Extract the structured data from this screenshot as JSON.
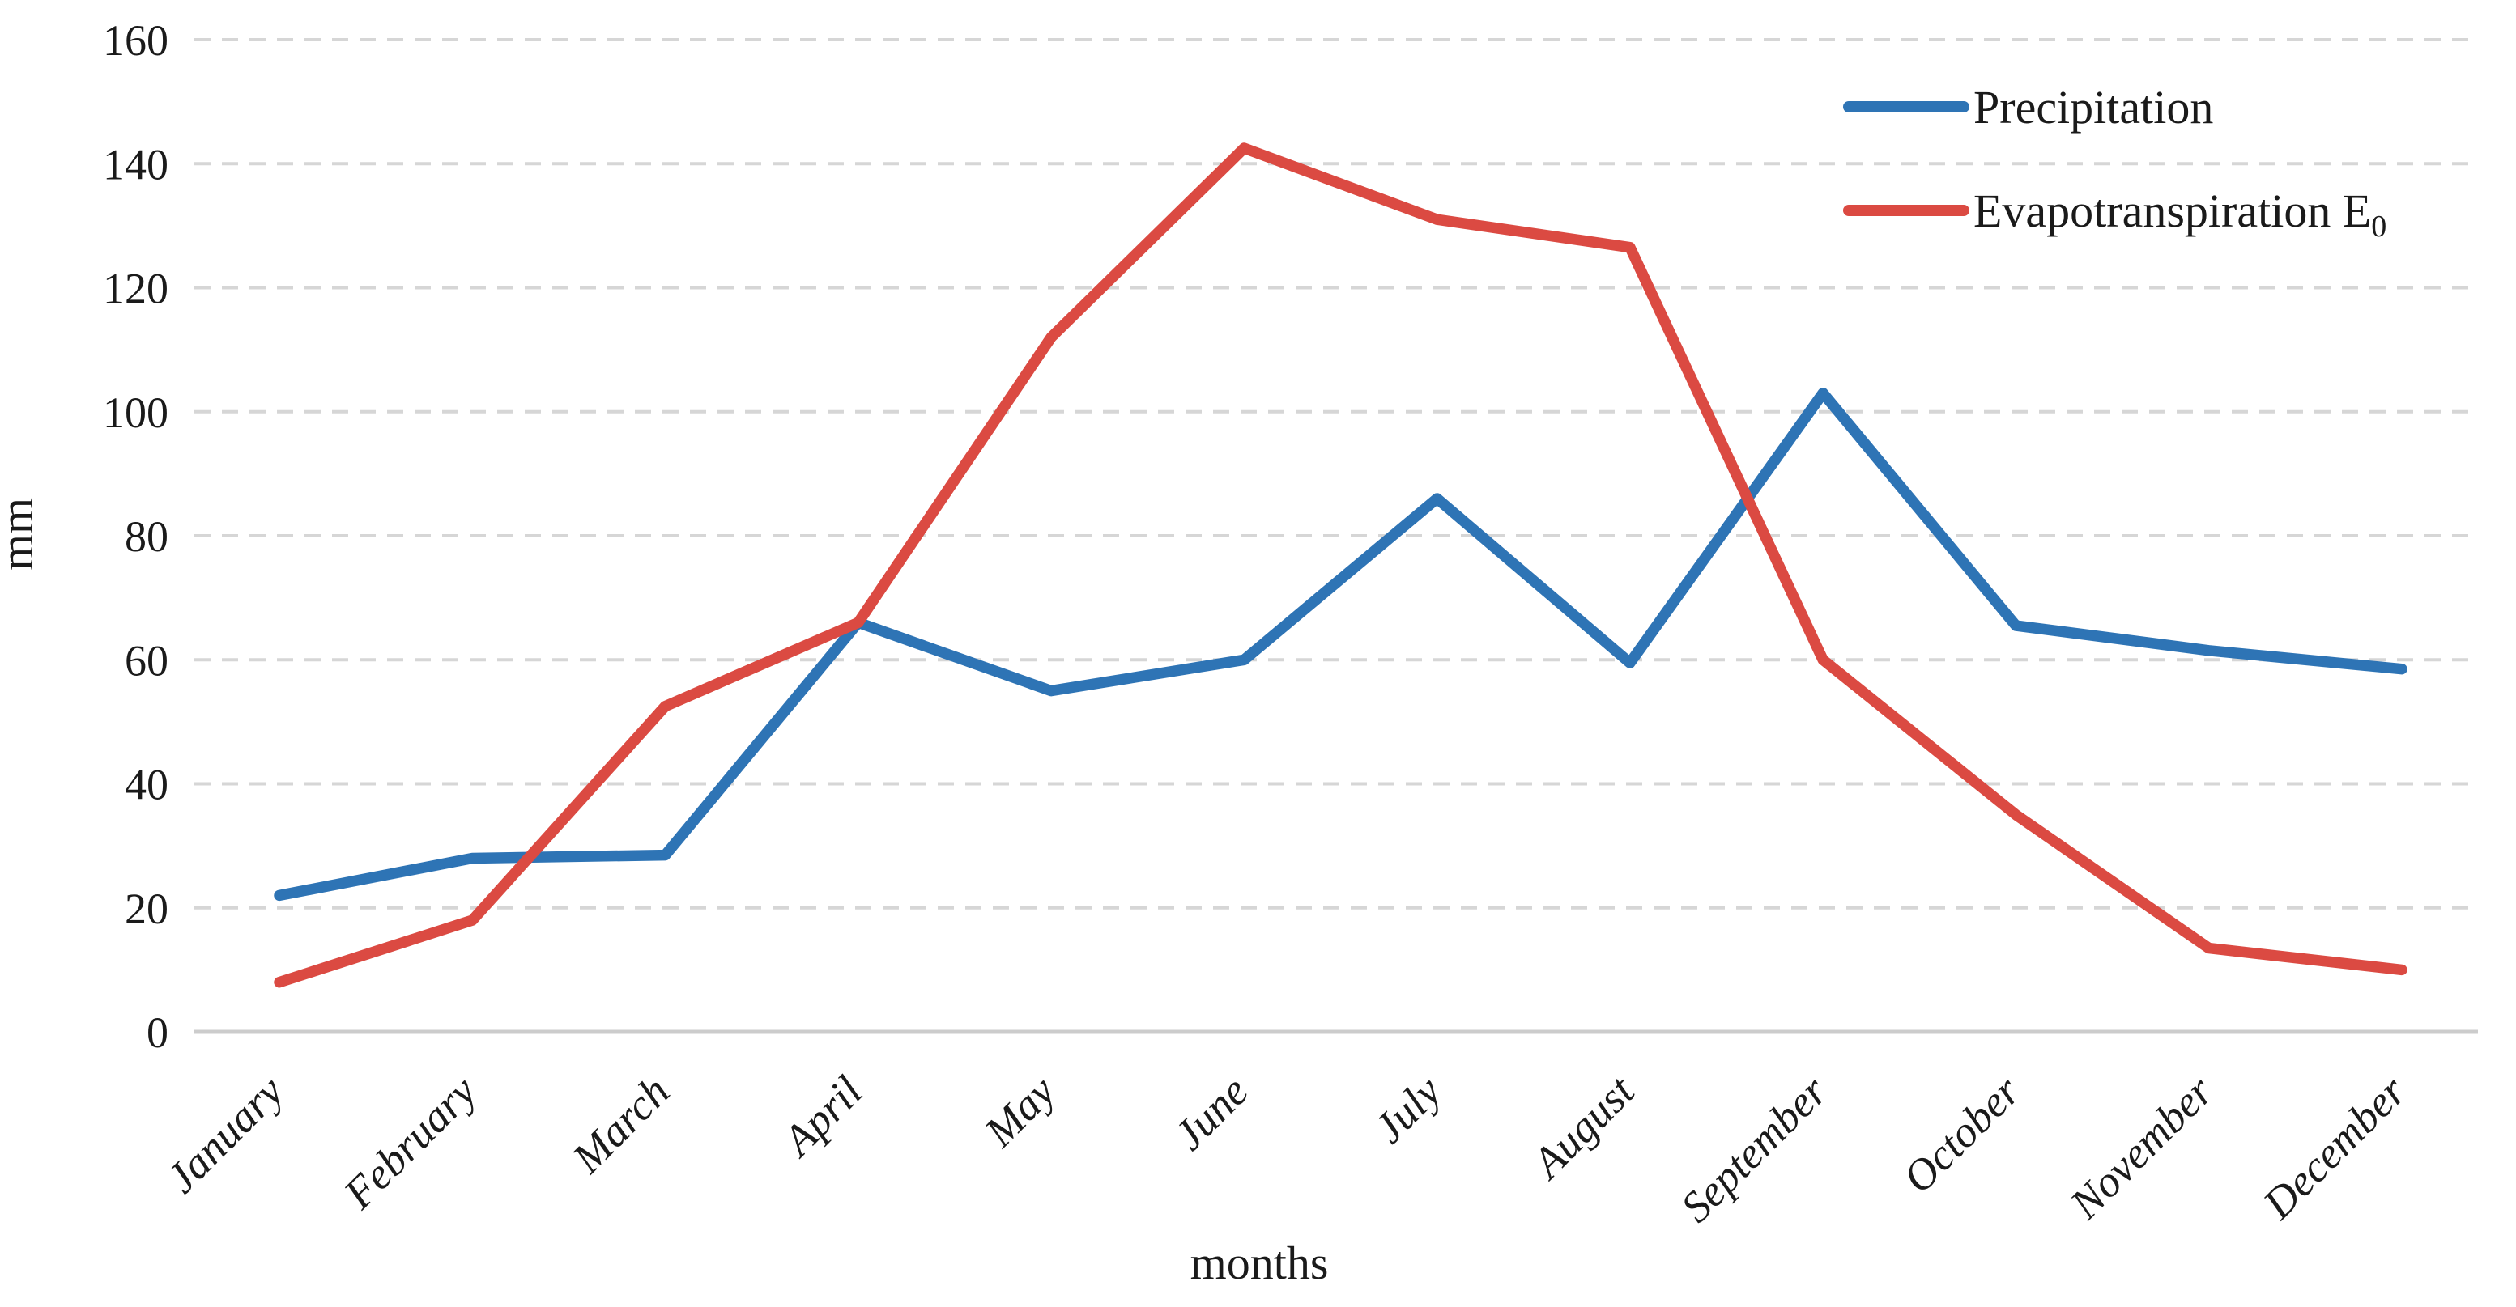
{
  "chart_data": {
    "type": "line",
    "title": "",
    "xlabel": "months",
    "ylabel": "mm",
    "categories": [
      "January",
      "February",
      "March",
      "April",
      "May",
      "June",
      "July",
      "August",
      "September",
      "October",
      "November",
      "December"
    ],
    "series": [
      {
        "name": "Precipitation",
        "color": "#2E74B5",
        "values": [
          22,
          28,
          28.5,
          66,
          55,
          60,
          86,
          59.5,
          103,
          65.5,
          61.5,
          58.5
        ]
      },
      {
        "name": "Evapotranspiration E",
        "name_subscript": "0",
        "display_name": "Evapotranspiration E0",
        "color": "#DB4A42",
        "values": [
          8,
          18,
          52.5,
          66,
          112,
          142.5,
          131,
          126.5,
          60,
          35,
          13.5,
          10
        ]
      }
    ],
    "ylim": [
      0,
      160
    ],
    "yticks": [
      0,
      20,
      40,
      60,
      80,
      100,
      120,
      140,
      160
    ],
    "grid": "horizontal-dashed",
    "legend_position": "top-right",
    "colors": {
      "gridline": "#D6D6D6",
      "axis_line": "#CCCCCC",
      "text": "#1a1a1a"
    }
  }
}
